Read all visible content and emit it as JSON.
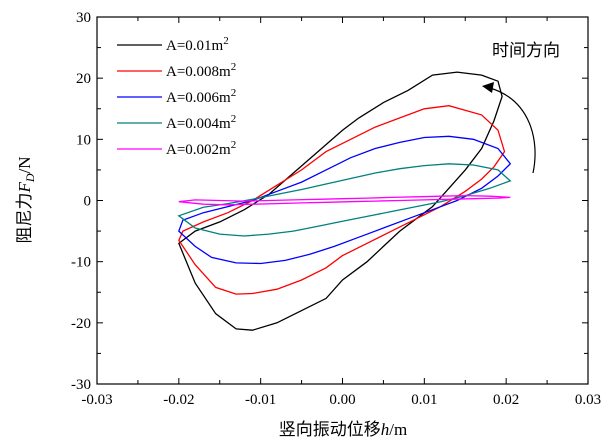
{
  "chart_data": {
    "type": "line",
    "xlabel_main": "竖向振动位移",
    "xlabel_var": "h",
    "xlabel_unit": "/m",
    "ylabel_main": "阻尼力",
    "ylabel_var": "F",
    "ylabel_sub": "D",
    "ylabel_unit": "/N",
    "xlim": [
      -0.03,
      0.03
    ],
    "ylim": [
      -30,
      30
    ],
    "xticks": [
      -0.03,
      -0.02,
      -0.01,
      0.0,
      0.01,
      0.02,
      0.03
    ],
    "xtick_labels": [
      "-0.03",
      "-0.02",
      "-0.01",
      "0.00",
      "0.01",
      "0.02",
      "0.03"
    ],
    "yticks": [
      -30,
      -20,
      -10,
      0,
      10,
      20,
      30
    ],
    "ytick_labels": [
      "-30",
      "-20",
      "-10",
      "0",
      "10",
      "20",
      "30"
    ],
    "grid": false,
    "legend_position": "top-left",
    "annotation": "时间方向",
    "series": [
      {
        "name": "A=0.01m",
        "sup": "2",
        "color": "#000000",
        "points": [
          [
            -0.02,
            -7
          ],
          [
            -0.018,
            -13.5
          ],
          [
            -0.0155,
            -18.5
          ],
          [
            -0.013,
            -21
          ],
          [
            -0.011,
            -21.2
          ],
          [
            -0.008,
            -20
          ],
          [
            -0.005,
            -18
          ],
          [
            -0.002,
            -16
          ],
          [
            0.0,
            -13
          ],
          [
            0.003,
            -10
          ],
          [
            0.005,
            -7.5
          ],
          [
            0.007,
            -5
          ],
          [
            0.009,
            -3
          ],
          [
            0.011,
            -1
          ],
          [
            0.013,
            2
          ],
          [
            0.015,
            5
          ],
          [
            0.017,
            8.5
          ],
          [
            0.0185,
            13
          ],
          [
            0.0195,
            17
          ],
          [
            0.019,
            19.5
          ],
          [
            0.017,
            20.5
          ],
          [
            0.014,
            21
          ],
          [
            0.011,
            20.5
          ],
          [
            0.008,
            18
          ],
          [
            0.005,
            16
          ],
          [
            0.002,
            13.5
          ],
          [
            0.0,
            11.5
          ],
          [
            -0.003,
            8
          ],
          [
            -0.006,
            4.5
          ],
          [
            -0.009,
            1
          ],
          [
            -0.012,
            -1.5
          ],
          [
            -0.015,
            -3.5
          ],
          [
            -0.018,
            -5
          ],
          [
            -0.02,
            -7
          ]
        ]
      },
      {
        "name": "A=0.008m",
        "sup": "2",
        "color": "#ff0000",
        "points": [
          [
            -0.02,
            -6.5
          ],
          [
            -0.018,
            -10.5
          ],
          [
            -0.0155,
            -14.2
          ],
          [
            -0.013,
            -15.3
          ],
          [
            -0.011,
            -15.2
          ],
          [
            -0.008,
            -14.5
          ],
          [
            -0.005,
            -13
          ],
          [
            -0.002,
            -11
          ],
          [
            0.0,
            -9
          ],
          [
            0.003,
            -7
          ],
          [
            0.006,
            -5
          ],
          [
            0.009,
            -3
          ],
          [
            0.012,
            -1
          ],
          [
            0.015,
            1.5
          ],
          [
            0.017,
            3.5
          ],
          [
            0.0185,
            5.5
          ],
          [
            0.0198,
            8
          ],
          [
            0.019,
            11.5
          ],
          [
            0.017,
            14
          ],
          [
            0.013,
            15.5
          ],
          [
            0.01,
            15
          ],
          [
            0.007,
            13.5
          ],
          [
            0.004,
            12
          ],
          [
            0.001,
            10
          ],
          [
            -0.002,
            8
          ],
          [
            -0.005,
            5
          ],
          [
            -0.008,
            2.5
          ],
          [
            -0.011,
            0
          ],
          [
            -0.014,
            -2
          ],
          [
            -0.017,
            -3.5
          ],
          [
            -0.0195,
            -5
          ],
          [
            -0.02,
            -6.5
          ]
        ]
      },
      {
        "name": "A=0.006m",
        "sup": "2",
        "color": "#0000ff",
        "points": [
          [
            -0.02,
            -5
          ],
          [
            -0.018,
            -7.5
          ],
          [
            -0.016,
            -9.3
          ],
          [
            -0.013,
            -10.2
          ],
          [
            -0.01,
            -10.3
          ],
          [
            -0.007,
            -9.8
          ],
          [
            -0.004,
            -8.8
          ],
          [
            -0.001,
            -7.5
          ],
          [
            0.002,
            -6
          ],
          [
            0.005,
            -4.5
          ],
          [
            0.008,
            -3
          ],
          [
            0.011,
            -1.5
          ],
          [
            0.014,
            0
          ],
          [
            0.017,
            2
          ],
          [
            0.019,
            4
          ],
          [
            0.0205,
            6
          ],
          [
            0.019,
            8.5
          ],
          [
            0.016,
            10
          ],
          [
            0.013,
            10.5
          ],
          [
            0.01,
            10.3
          ],
          [
            0.007,
            9.5
          ],
          [
            0.004,
            8.5
          ],
          [
            0.001,
            7
          ],
          [
            -0.002,
            5
          ],
          [
            -0.005,
            3
          ],
          [
            -0.008,
            1.5
          ],
          [
            -0.011,
            0
          ],
          [
            -0.014,
            -1
          ],
          [
            -0.017,
            -2
          ],
          [
            -0.0195,
            -3.2
          ],
          [
            -0.02,
            -5
          ]
        ]
      },
      {
        "name": "A=0.004m",
        "sup": "2",
        "color": "#008080",
        "points": [
          [
            -0.02,
            -2.5
          ],
          [
            -0.018,
            -4.5
          ],
          [
            -0.015,
            -5.5
          ],
          [
            -0.012,
            -5.8
          ],
          [
            -0.009,
            -5.5
          ],
          [
            -0.006,
            -5
          ],
          [
            -0.003,
            -4.2
          ],
          [
            0.0,
            -3.4
          ],
          [
            0.003,
            -2.6
          ],
          [
            0.006,
            -1.8
          ],
          [
            0.009,
            -1
          ],
          [
            0.012,
            -0.2
          ],
          [
            0.015,
            0.8
          ],
          [
            0.018,
            2
          ],
          [
            0.0205,
            3.2
          ],
          [
            0.019,
            5
          ],
          [
            0.016,
            5.8
          ],
          [
            0.013,
            6
          ],
          [
            0.01,
            5.7
          ],
          [
            0.007,
            5.2
          ],
          [
            0.004,
            4.5
          ],
          [
            0.001,
            3.6
          ],
          [
            -0.002,
            2.7
          ],
          [
            -0.005,
            1.8
          ],
          [
            -0.008,
            1
          ],
          [
            -0.011,
            0.2
          ],
          [
            -0.014,
            -0.5
          ],
          [
            -0.017,
            -1.1
          ],
          [
            -0.02,
            -2.5
          ]
        ]
      },
      {
        "name": "A=0.002m",
        "sup": "2",
        "color": "#ff00ff",
        "points": [
          [
            -0.02,
            -0.2
          ],
          [
            -0.017,
            -0.6
          ],
          [
            -0.014,
            -0.7
          ],
          [
            -0.011,
            -0.6
          ],
          [
            -0.008,
            -0.5
          ],
          [
            -0.005,
            -0.4
          ],
          [
            -0.002,
            -0.3
          ],
          [
            0.001,
            -0.2
          ],
          [
            0.004,
            -0.1
          ],
          [
            0.007,
            0
          ],
          [
            0.01,
            0.1
          ],
          [
            0.013,
            0.2
          ],
          [
            0.016,
            0.3
          ],
          [
            0.019,
            0.4
          ],
          [
            0.0205,
            0.5
          ],
          [
            0.018,
            0.7
          ],
          [
            0.015,
            0.8
          ],
          [
            0.012,
            0.7
          ],
          [
            0.009,
            0.6
          ],
          [
            0.006,
            0.5
          ],
          [
            0.003,
            0.4
          ],
          [
            0.0,
            0.3
          ],
          [
            -0.003,
            0.2
          ],
          [
            -0.006,
            0.1
          ],
          [
            -0.009,
            0
          ],
          [
            -0.012,
            -0.1
          ],
          [
            -0.015,
            0
          ],
          [
            -0.018,
            0.1
          ],
          [
            -0.02,
            -0.2
          ]
        ]
      }
    ]
  }
}
